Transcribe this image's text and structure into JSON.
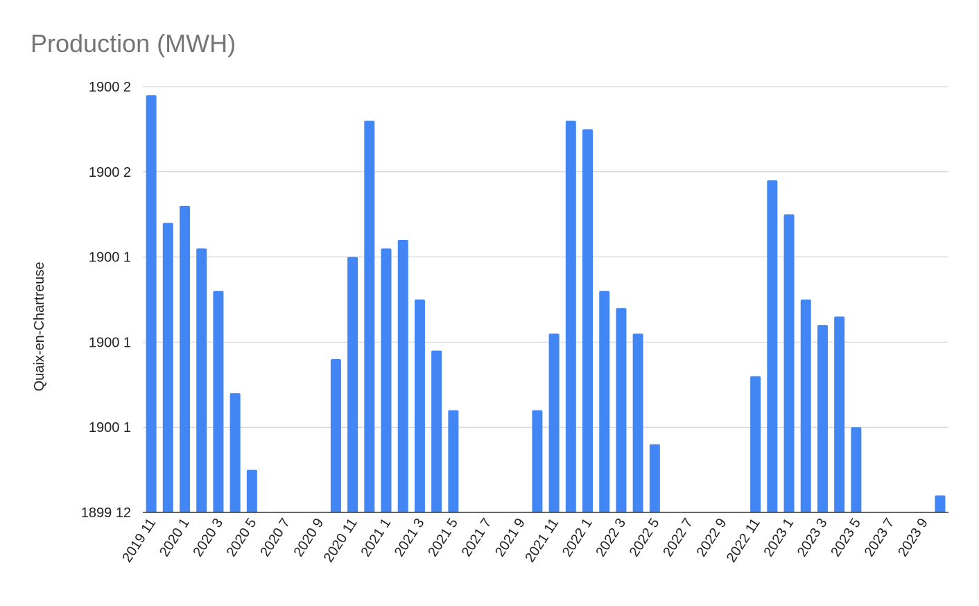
{
  "chart_data": {
    "type": "bar",
    "title": "Production (MWH)",
    "y_label": "Quaix-en-Chartreuse",
    "categories": [
      "2019 11",
      null,
      "2020 1",
      null,
      "2020 3",
      null,
      "2020 5",
      null,
      "2020 7",
      null,
      "2020 9",
      null,
      "2020 11",
      null,
      "2021 1",
      null,
      "2021 3",
      null,
      "2021 5",
      null,
      "2021 7",
      null,
      "2021 9",
      null,
      "2021 11",
      null,
      "2022 1",
      null,
      "2022 3",
      null,
      "2022 5",
      null,
      "2022 7",
      null,
      "2022 9",
      null,
      "2022 11",
      null,
      "2023 1",
      null,
      "2023 3",
      null,
      "2023 5",
      null,
      "2023 7",
      null,
      "2023 9",
      null
    ],
    "values": [
      49,
      34,
      36,
      31,
      26,
      14,
      5,
      0,
      0,
      0,
      0,
      18,
      30,
      46,
      31,
      32,
      25,
      19,
      12,
      0,
      0,
      0,
      0,
      12,
      21,
      46,
      45,
      26,
      24,
      21,
      8,
      0,
      0,
      0,
      0,
      0,
      16,
      39,
      35,
      25,
      22,
      23,
      10,
      0,
      0,
      0,
      0,
      2
    ],
    "color": "#4285f4",
    "ylim": [
      0,
      50
    ],
    "yticks": [
      {
        "value": 0,
        "label": "1899 12"
      },
      {
        "value": 10,
        "label": "1900 1"
      },
      {
        "value": 20,
        "label": "1900 1"
      },
      {
        "value": 30,
        "label": "1900 1"
      },
      {
        "value": 40,
        "label": "1900 2"
      },
      {
        "value": 50,
        "label": "1900 2"
      }
    ],
    "grid": true
  }
}
